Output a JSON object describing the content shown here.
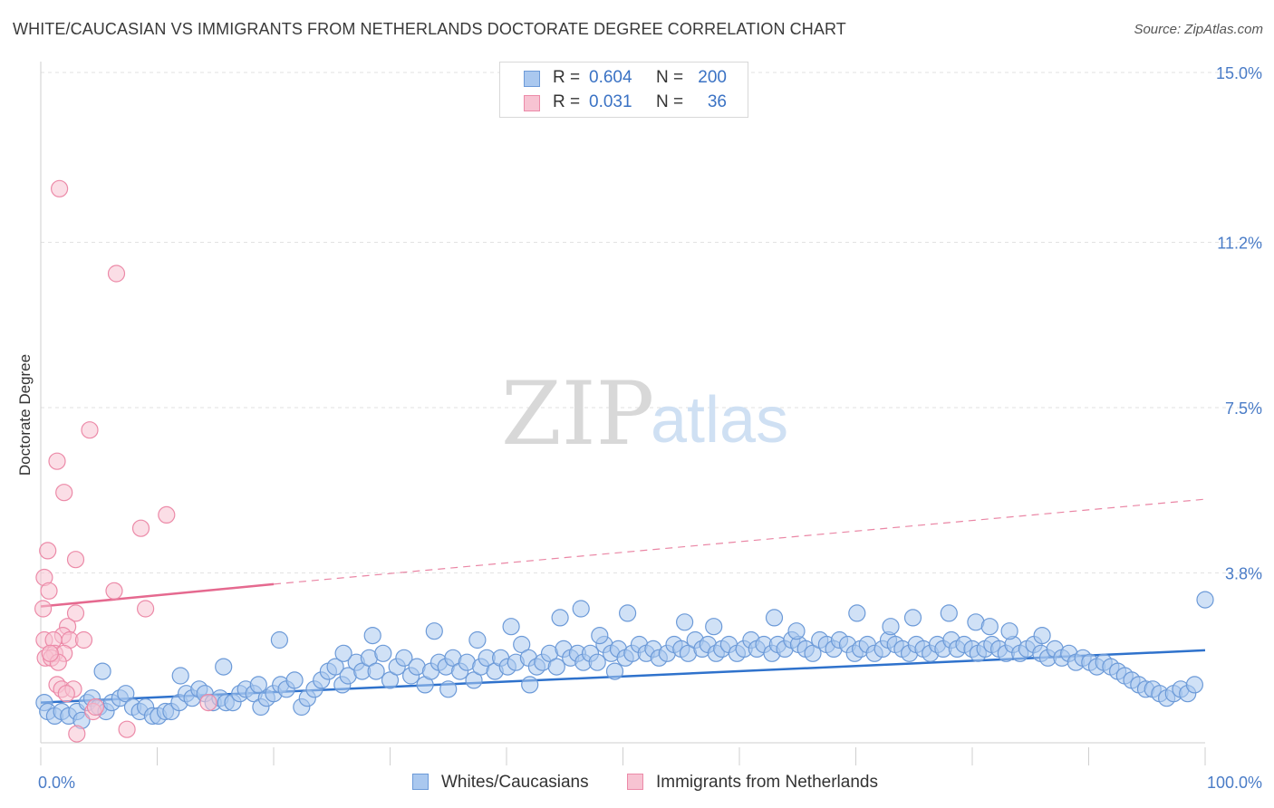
{
  "header": {
    "title": "WHITE/CAUCASIAN VS IMMIGRANTS FROM NETHERLANDS DOCTORATE DEGREE CORRELATION CHART",
    "source": "Source: ZipAtlas.com"
  },
  "watermark": {
    "zip": "ZIP",
    "atlas": "atlas"
  },
  "legend": {
    "rows": [
      {
        "r_label": "R =",
        "r_value": "0.604",
        "n_label": "N =",
        "n_value": "200"
      },
      {
        "r_label": "R =",
        "r_value": "0.031",
        "n_label": "N =",
        "n_value": "36"
      }
    ]
  },
  "bottom_legend": {
    "series_a": "Whites/Caucasians",
    "series_b": "Immigrants from Netherlands"
  },
  "colors": {
    "blue_fill": "#aac8ef",
    "blue_stroke": "#6c9ad8",
    "blue_line": "#2f72cc",
    "pink_fill": "#f7c3d2",
    "pink_stroke": "#ec8aa8",
    "pink_line": "#e5698f",
    "grid": "#e2e2e2",
    "tick_text": "#4a7cc7"
  },
  "chart_data": {
    "type": "scatter",
    "title": "WHITE/CAUCASIAN VS IMMIGRANTS FROM NETHERLANDS DOCTORATE DEGREE CORRELATION CHART",
    "xlabel": "",
    "ylabel": "Doctorate Degree",
    "xlim": [
      0,
      100
    ],
    "ylim": [
      0,
      15.0
    ],
    "x_tick_labels": [
      "0.0%",
      "100.0%"
    ],
    "y_ticks": [
      3.8,
      7.5,
      11.2,
      15.0
    ],
    "y_tick_labels": [
      "3.8%",
      "7.5%",
      "11.2%",
      "15.0%"
    ],
    "grid": true,
    "legend_position": "top-center",
    "series": [
      {
        "name": "Whites/Caucasians",
        "r": 0.604,
        "n": 200,
        "trend": {
          "x0": 0,
          "y0": 0.9,
          "x1": 100,
          "y1": 2.07
        },
        "points": [
          [
            0.3,
            0.9
          ],
          [
            0.6,
            0.7
          ],
          [
            1.2,
            0.6
          ],
          [
            1.8,
            0.7
          ],
          [
            2.4,
            0.6
          ],
          [
            3.1,
            0.7
          ],
          [
            3.5,
            0.5
          ],
          [
            4.0,
            0.9
          ],
          [
            4.4,
            1.0
          ],
          [
            5.0,
            0.8
          ],
          [
            5.6,
            0.7
          ],
          [
            6.1,
            0.9
          ],
          [
            6.8,
            1.0
          ],
          [
            7.3,
            1.1
          ],
          [
            7.9,
            0.8
          ],
          [
            8.5,
            0.7
          ],
          [
            9.0,
            0.8
          ],
          [
            9.6,
            0.6
          ],
          [
            10.1,
            0.6
          ],
          [
            10.7,
            0.7
          ],
          [
            11.2,
            0.7
          ],
          [
            11.9,
            0.9
          ],
          [
            12.5,
            1.1
          ],
          [
            13.0,
            1.0
          ],
          [
            13.6,
            1.2
          ],
          [
            14.1,
            1.1
          ],
          [
            14.8,
            0.9
          ],
          [
            15.4,
            1.0
          ],
          [
            15.9,
            0.9
          ],
          [
            16.5,
            0.9
          ],
          [
            17.1,
            1.1
          ],
          [
            17.6,
            1.2
          ],
          [
            18.3,
            1.1
          ],
          [
            18.9,
            0.8
          ],
          [
            19.4,
            1.0
          ],
          [
            20.0,
            1.1
          ],
          [
            20.6,
            1.3
          ],
          [
            21.1,
            1.2
          ],
          [
            21.8,
            1.4
          ],
          [
            22.4,
            0.8
          ],
          [
            22.9,
            1.0
          ],
          [
            23.5,
            1.2
          ],
          [
            24.1,
            1.4
          ],
          [
            24.7,
            1.6
          ],
          [
            25.3,
            1.7
          ],
          [
            25.9,
            1.3
          ],
          [
            26.4,
            1.5
          ],
          [
            27.1,
            1.8
          ],
          [
            27.6,
            1.6
          ],
          [
            28.2,
            1.9
          ],
          [
            28.8,
            1.6
          ],
          [
            29.4,
            2.0
          ],
          [
            30.0,
            1.4
          ],
          [
            30.6,
            1.7
          ],
          [
            31.2,
            1.9
          ],
          [
            31.8,
            1.5
          ],
          [
            32.3,
            1.7
          ],
          [
            33.0,
            1.3
          ],
          [
            33.5,
            1.6
          ],
          [
            34.2,
            1.8
          ],
          [
            34.8,
            1.7
          ],
          [
            35.4,
            1.9
          ],
          [
            36.0,
            1.6
          ],
          [
            36.6,
            1.8
          ],
          [
            37.2,
            1.4
          ],
          [
            37.8,
            1.7
          ],
          [
            38.3,
            1.9
          ],
          [
            39.0,
            1.6
          ],
          [
            39.5,
            1.9
          ],
          [
            40.1,
            1.7
          ],
          [
            40.8,
            1.8
          ],
          [
            41.3,
            2.2
          ],
          [
            41.9,
            1.9
          ],
          [
            42.6,
            1.7
          ],
          [
            43.1,
            1.8
          ],
          [
            43.7,
            2.0
          ],
          [
            44.3,
            1.7
          ],
          [
            44.9,
            2.1
          ],
          [
            45.5,
            1.9
          ],
          [
            46.1,
            2.0
          ],
          [
            46.6,
            1.8
          ],
          [
            47.2,
            2.0
          ],
          [
            47.8,
            1.8
          ],
          [
            48.4,
            2.2
          ],
          [
            49.0,
            2.0
          ],
          [
            49.6,
            2.1
          ],
          [
            50.2,
            1.9
          ],
          [
            50.8,
            2.0
          ],
          [
            51.4,
            2.2
          ],
          [
            52.0,
            2.0
          ],
          [
            52.6,
            2.1
          ],
          [
            53.1,
            1.9
          ],
          [
            53.8,
            2.0
          ],
          [
            54.4,
            2.2
          ],
          [
            55.0,
            2.1
          ],
          [
            55.6,
            2.0
          ],
          [
            56.2,
            2.3
          ],
          [
            56.8,
            2.1
          ],
          [
            57.3,
            2.2
          ],
          [
            58.0,
            2.0
          ],
          [
            58.5,
            2.1
          ],
          [
            59.1,
            2.2
          ],
          [
            59.8,
            2.0
          ],
          [
            60.4,
            2.1
          ],
          [
            61.0,
            2.3
          ],
          [
            61.5,
            2.1
          ],
          [
            62.1,
            2.2
          ],
          [
            62.8,
            2.0
          ],
          [
            63.3,
            2.2
          ],
          [
            63.9,
            2.1
          ],
          [
            64.5,
            2.3
          ],
          [
            65.1,
            2.2
          ],
          [
            65.7,
            2.1
          ],
          [
            66.3,
            2.0
          ],
          [
            66.9,
            2.3
          ],
          [
            67.5,
            2.2
          ],
          [
            68.1,
            2.1
          ],
          [
            68.6,
            2.3
          ],
          [
            69.3,
            2.2
          ],
          [
            69.9,
            2.0
          ],
          [
            70.4,
            2.1
          ],
          [
            71.0,
            2.2
          ],
          [
            71.6,
            2.0
          ],
          [
            72.3,
            2.1
          ],
          [
            72.8,
            2.3
          ],
          [
            73.4,
            2.2
          ],
          [
            74.0,
            2.1
          ],
          [
            74.6,
            2.0
          ],
          [
            75.2,
            2.2
          ],
          [
            75.8,
            2.1
          ],
          [
            76.4,
            2.0
          ],
          [
            77.0,
            2.2
          ],
          [
            77.5,
            2.1
          ],
          [
            78.2,
            2.3
          ],
          [
            78.7,
            2.1
          ],
          [
            79.3,
            2.2
          ],
          [
            80.0,
            2.1
          ],
          [
            80.5,
            2.0
          ],
          [
            81.1,
            2.1
          ],
          [
            81.7,
            2.2
          ],
          [
            82.3,
            2.1
          ],
          [
            82.9,
            2.0
          ],
          [
            83.5,
            2.2
          ],
          [
            84.1,
            2.0
          ],
          [
            84.7,
            2.1
          ],
          [
            85.3,
            2.2
          ],
          [
            85.9,
            2.0
          ],
          [
            86.5,
            1.9
          ],
          [
            87.1,
            2.1
          ],
          [
            87.7,
            1.9
          ],
          [
            88.3,
            2.0
          ],
          [
            88.9,
            1.8
          ],
          [
            89.5,
            1.9
          ],
          [
            90.1,
            1.8
          ],
          [
            90.7,
            1.7
          ],
          [
            91.3,
            1.8
          ],
          [
            91.9,
            1.7
          ],
          [
            92.5,
            1.6
          ],
          [
            93.1,
            1.5
          ],
          [
            93.7,
            1.4
          ],
          [
            94.3,
            1.3
          ],
          [
            94.9,
            1.2
          ],
          [
            95.5,
            1.2
          ],
          [
            96.1,
            1.1
          ],
          [
            96.7,
            1.0
          ],
          [
            97.3,
            1.1
          ],
          [
            97.9,
            1.2
          ],
          [
            98.5,
            1.1
          ],
          [
            99.1,
            1.3
          ],
          [
            100.0,
            3.2
          ],
          [
            12.0,
            1.5
          ],
          [
            20.5,
            2.3
          ],
          [
            28.5,
            2.4
          ],
          [
            33.8,
            2.5
          ],
          [
            40.4,
            2.6
          ],
          [
            44.6,
            2.8
          ],
          [
            46.4,
            3.0
          ],
          [
            50.4,
            2.9
          ],
          [
            55.3,
            2.7
          ],
          [
            63.0,
            2.8
          ],
          [
            70.1,
            2.9
          ],
          [
            74.9,
            2.8
          ],
          [
            78.0,
            2.9
          ],
          [
            80.3,
            2.7
          ],
          [
            83.2,
            2.5
          ],
          [
            86.0,
            2.4
          ],
          [
            5.3,
            1.6
          ],
          [
            15.7,
            1.7
          ],
          [
            26.0,
            2.0
          ],
          [
            37.5,
            2.3
          ],
          [
            48.0,
            2.4
          ],
          [
            57.8,
            2.6
          ],
          [
            64.9,
            2.5
          ],
          [
            73.0,
            2.6
          ],
          [
            81.5,
            2.6
          ],
          [
            18.7,
            1.3
          ],
          [
            35.0,
            1.2
          ],
          [
            42.0,
            1.3
          ],
          [
            49.3,
            1.6
          ]
        ]
      },
      {
        "name": "Immigrants from Netherlands",
        "r": 0.031,
        "n": 36,
        "trend": {
          "x0": 0,
          "y0": 3.05,
          "x1": 20,
          "y1": 3.55
        },
        "trend_extension": {
          "x0": 20,
          "y0": 3.55,
          "x1": 100,
          "y1": 5.45
        },
        "points": [
          [
            1.6,
            12.4
          ],
          [
            6.5,
            10.5
          ],
          [
            4.2,
            7.0
          ],
          [
            1.4,
            6.3
          ],
          [
            2.0,
            5.6
          ],
          [
            10.8,
            5.1
          ],
          [
            8.6,
            4.8
          ],
          [
            0.6,
            4.3
          ],
          [
            3.0,
            4.1
          ],
          [
            0.3,
            3.7
          ],
          [
            0.7,
            3.4
          ],
          [
            6.3,
            3.4
          ],
          [
            9.0,
            3.0
          ],
          [
            0.2,
            3.0
          ],
          [
            3.0,
            2.9
          ],
          [
            2.3,
            2.6
          ],
          [
            1.9,
            2.4
          ],
          [
            0.3,
            2.3
          ],
          [
            1.1,
            2.3
          ],
          [
            2.5,
            2.3
          ],
          [
            3.7,
            2.3
          ],
          [
            1.2,
            2.0
          ],
          [
            2.0,
            2.0
          ],
          [
            0.4,
            1.9
          ],
          [
            0.9,
            1.9
          ],
          [
            1.5,
            1.8
          ],
          [
            1.4,
            1.3
          ],
          [
            1.8,
            1.2
          ],
          [
            2.8,
            1.2
          ],
          [
            4.5,
            0.7
          ],
          [
            4.7,
            0.8
          ],
          [
            14.4,
            0.9
          ],
          [
            7.4,
            0.3
          ],
          [
            3.1,
            0.2
          ],
          [
            2.2,
            1.1
          ],
          [
            0.8,
            2.0
          ]
        ]
      }
    ]
  }
}
